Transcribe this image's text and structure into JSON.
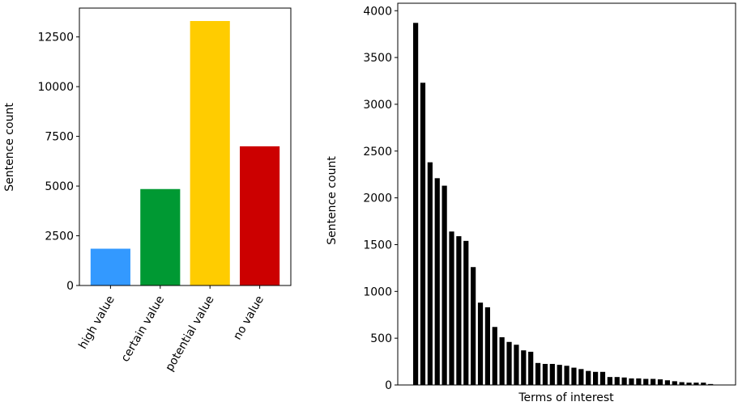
{
  "chart_data": [
    {
      "type": "bar",
      "ylabel": "Sentence count",
      "xlabel": "",
      "ylim": [
        0,
        13950
      ],
      "yticks": [
        0,
        2500,
        5000,
        7500,
        10000,
        12500
      ],
      "categories": [
        "high value",
        "certain value",
        "potential value",
        "no value"
      ],
      "values": [
        1850,
        4850,
        13300,
        7000
      ],
      "colors": [
        "#3399ff",
        "#009933",
        "#ffcc00",
        "#cc0000"
      ],
      "grid": false
    },
    {
      "type": "bar",
      "xlabel": "Terms of interest",
      "ylabel": "Sentence count",
      "ylim": [
        0,
        4080
      ],
      "yticks": [
        0,
        500,
        1000,
        1500,
        2000,
        2500,
        3000,
        3500,
        4000
      ],
      "bar_color": "#000000",
      "grid": false,
      "values": [
        3870,
        3230,
        2380,
        2210,
        2130,
        1640,
        1590,
        1540,
        1260,
        880,
        830,
        620,
        510,
        460,
        430,
        370,
        355,
        235,
        225,
        225,
        215,
        205,
        185,
        170,
        150,
        140,
        140,
        85,
        85,
        80,
        70,
        70,
        65,
        65,
        60,
        50,
        40,
        30,
        25,
        25,
        25,
        10
      ]
    }
  ]
}
